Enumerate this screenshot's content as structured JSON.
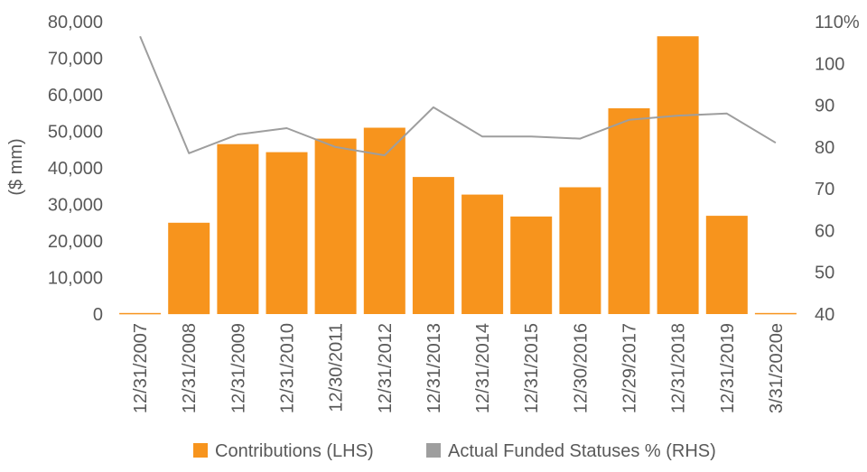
{
  "chart_data": {
    "type": "bar",
    "categories": [
      "12/31/2007",
      "12/31/2008",
      "12/31/2009",
      "12/31/2010",
      "12/30/2011",
      "12/31/2012",
      "12/31/2013",
      "12/31/2014",
      "12/31/2015",
      "12/30/2016",
      "12/29/2017",
      "12/31/2018",
      "12/31/2019",
      "3/31/2020e"
    ],
    "series": [
      {
        "name": "Contributions (LHS)",
        "axis": "left",
        "type": "bar",
        "color": "#F7941D",
        "values": [
          300,
          25000,
          46500,
          44300,
          48000,
          51000,
          37500,
          32700,
          26700,
          34700,
          56300,
          76000,
          26900,
          300
        ]
      },
      {
        "name": "Actual Funded Statuses % (RHS)",
        "axis": "right",
        "type": "line",
        "color": "#9E9E9E",
        "values": [
          106.5,
          78.5,
          83,
          84.5,
          80,
          78,
          89.5,
          82.5,
          82.5,
          82,
          86.5,
          87.5,
          88,
          81
        ]
      }
    ],
    "ylabel": "($ mm)",
    "ylim": [
      0,
      80000
    ],
    "yticks": [
      "0",
      "10,000",
      "20,000",
      "30,000",
      "40,000",
      "50,000",
      "60,000",
      "70,000",
      "80,000"
    ],
    "y2lim": [
      40,
      110
    ],
    "y2ticks": [
      "40",
      "50",
      "60",
      "70",
      "80",
      "90",
      "100",
      "110%"
    ],
    "grid": false,
    "legend_position": "bottom"
  }
}
